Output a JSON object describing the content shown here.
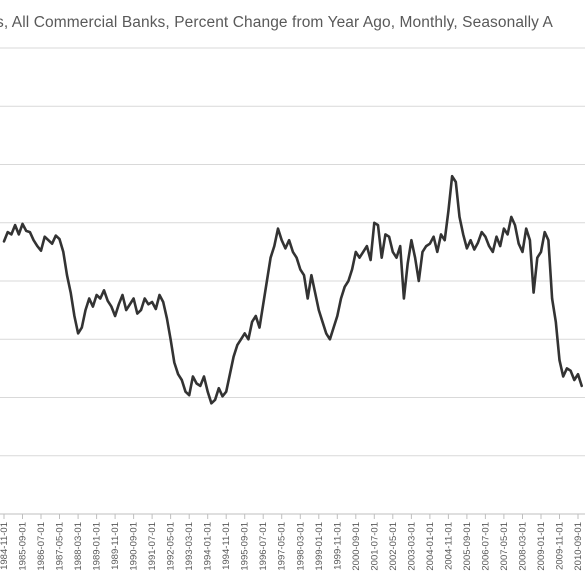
{
  "chart_data": {
    "type": "line",
    "title": "s, All Commercial Banks, Percent Change from Year Ago, Monthly, Seasonally A",
    "xlabel": "",
    "ylabel": "",
    "grid": true,
    "legend": "none",
    "x_tick_labels": [
      "1984-11-01",
      "1985-09-01",
      "1986-07-01",
      "1987-05-01",
      "1988-03-01",
      "1989-01-01",
      "1989-11-01",
      "1990-09-01",
      "1991-07-01",
      "1992-05-01",
      "1993-03-01",
      "1994-01-01",
      "1994-11-01",
      "1995-09-01",
      "1996-07-01",
      "1997-05-01",
      "1998-03-01",
      "1999-01-01",
      "1999-11-01",
      "2000-09-01",
      "2001-07-01",
      "2002-05-01",
      "2003-03-01",
      "2004-01-01",
      "2004-11-01",
      "2005-09-01",
      "2006-07-01",
      "2007-05-01",
      "2008-03-01",
      "2009-01-01",
      "2009-11-01",
      "2010-09-01"
    ],
    "ylim": [
      -10,
      30
    ],
    "y_gridlines": [
      -10,
      -5,
      0,
      5,
      10,
      15,
      20,
      25,
      30
    ],
    "series": [
      {
        "x": [
          "1984-11-01",
          "1985-01-01",
          "1985-03-01",
          "1985-05-01",
          "1985-07-01",
          "1985-09-01",
          "1985-11-01",
          "1986-01-01",
          "1986-03-01",
          "1986-05-01",
          "1986-07-01",
          "1986-09-01",
          "1986-11-01",
          "1987-01-01",
          "1987-03-01",
          "1987-05-01",
          "1987-07-01",
          "1987-09-01",
          "1987-11-01",
          "1988-01-01",
          "1988-03-01",
          "1988-05-01",
          "1988-07-01",
          "1988-09-01",
          "1988-11-01",
          "1989-01-01",
          "1989-03-01",
          "1989-05-01",
          "1989-07-01",
          "1989-09-01",
          "1989-11-01",
          "1990-01-01",
          "1990-03-01",
          "1990-05-01",
          "1990-07-01",
          "1990-09-01",
          "1990-11-01",
          "1991-01-01",
          "1991-03-01",
          "1991-05-01",
          "1991-07-01",
          "1991-09-01",
          "1991-11-01",
          "1992-01-01",
          "1992-03-01",
          "1992-05-01",
          "1992-07-01",
          "1992-09-01",
          "1992-11-01",
          "1993-01-01",
          "1993-03-01",
          "1993-05-01",
          "1993-07-01",
          "1993-09-01",
          "1993-11-01",
          "1994-01-01",
          "1994-03-01",
          "1994-05-01",
          "1994-07-01",
          "1994-09-01",
          "1994-11-01",
          "1995-01-01",
          "1995-03-01",
          "1995-05-01",
          "1995-07-01",
          "1995-09-01",
          "1995-11-01",
          "1996-01-01",
          "1996-03-01",
          "1996-05-01",
          "1996-07-01",
          "1996-09-01",
          "1996-11-01",
          "1997-01-01",
          "1997-03-01",
          "1997-05-01",
          "1997-07-01",
          "1997-09-01",
          "1997-11-01",
          "1998-01-01",
          "1998-03-01",
          "1998-05-01",
          "1998-07-01",
          "1998-09-01",
          "1998-11-01",
          "1999-01-01",
          "1999-03-01",
          "1999-05-01",
          "1999-07-01",
          "1999-09-01",
          "1999-11-01",
          "2000-01-01",
          "2000-03-01",
          "2000-05-01",
          "2000-07-01",
          "2000-09-01",
          "2000-11-01",
          "2001-01-01",
          "2001-03-01",
          "2001-05-01",
          "2001-07-01",
          "2001-09-01",
          "2001-11-01",
          "2002-01-01",
          "2002-03-01",
          "2002-05-01",
          "2002-07-01",
          "2002-09-01",
          "2002-11-01",
          "2003-01-01",
          "2003-03-01",
          "2003-05-01",
          "2003-07-01",
          "2003-09-01",
          "2003-11-01",
          "2004-01-01",
          "2004-03-01",
          "2004-05-01",
          "2004-07-01",
          "2004-09-01",
          "2004-11-01",
          "2005-01-01",
          "2005-03-01",
          "2005-05-01",
          "2005-07-01",
          "2005-09-01",
          "2005-11-01",
          "2006-01-01",
          "2006-03-01",
          "2006-05-01",
          "2006-07-01",
          "2006-09-01",
          "2006-11-01",
          "2007-01-01",
          "2007-03-01",
          "2007-05-01",
          "2007-07-01",
          "2007-09-01",
          "2007-11-01",
          "2008-01-01",
          "2008-03-01",
          "2008-05-01",
          "2008-07-01",
          "2008-09-01",
          "2008-11-01",
          "2009-01-01",
          "2009-03-01",
          "2009-05-01",
          "2009-07-01",
          "2009-09-01",
          "2009-11-01",
          "2010-01-01",
          "2010-03-01",
          "2010-05-01",
          "2010-07-01",
          "2010-09-01",
          "2010-11-01"
        ],
        "values": [
          13.4,
          14.2,
          14.0,
          14.8,
          14.0,
          14.9,
          14.3,
          14.2,
          13.5,
          13.0,
          12.6,
          13.8,
          13.5,
          13.2,
          13.9,
          13.6,
          12.5,
          10.5,
          9.0,
          7.0,
          5.5,
          6.0,
          7.5,
          8.5,
          7.8,
          8.8,
          8.5,
          9.2,
          8.3,
          7.8,
          7.0,
          8.0,
          8.8,
          7.5,
          8.0,
          8.5,
          7.2,
          7.5,
          8.5,
          8.0,
          8.2,
          7.6,
          8.8,
          8.2,
          6.8,
          5.0,
          3.0,
          2.0,
          1.5,
          0.5,
          0.2,
          1.8,
          1.2,
          1.0,
          1.8,
          0.5,
          -0.5,
          -0.2,
          0.8,
          0.1,
          0.5,
          2.0,
          3.5,
          4.5,
          5.0,
          5.5,
          5.0,
          6.5,
          7.0,
          6.0,
          8.0,
          10.0,
          12.0,
          13.0,
          14.5,
          13.5,
          12.8,
          13.5,
          12.5,
          12.0,
          11.0,
          10.5,
          8.5,
          10.5,
          9.0,
          7.5,
          6.5,
          5.5,
          5.0,
          6.0,
          7.0,
          8.5,
          9.5,
          10.0,
          11.0,
          12.5,
          12.0,
          12.5,
          13.0,
          11.8,
          15.0,
          14.8,
          12.0,
          14.0,
          13.8,
          12.5,
          12.0,
          13.0,
          8.5,
          11.5,
          13.5,
          12.0,
          10.0,
          12.5,
          13.0,
          13.2,
          13.8,
          12.5,
          14.0,
          13.5,
          16.0,
          19.0,
          18.5,
          15.5,
          14.0,
          12.8,
          13.5,
          12.7,
          13.3,
          14.2,
          13.8,
          13.0,
          12.5,
          13.8,
          13.0,
          14.5,
          14.0,
          15.5,
          14.8,
          13.2,
          12.5,
          14.5,
          13.5,
          9.0,
          12.0,
          12.5,
          14.2,
          13.5,
          8.5,
          6.5,
          3.2,
          1.8,
          2.5,
          2.3,
          1.5,
          2.0,
          1.0
        ]
      }
    ]
  }
}
